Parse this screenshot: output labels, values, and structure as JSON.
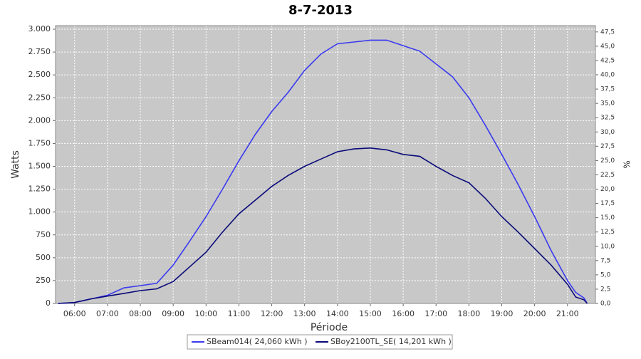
{
  "chart_data": {
    "type": "line",
    "title": "8-7-2013",
    "x_label": "Période",
    "y_label": "Watts",
    "y2_label": "%",
    "x": [
      5.5,
      6,
      6.5,
      7,
      7.5,
      8,
      8.5,
      9,
      9.5,
      10,
      10.5,
      11,
      11.5,
      12,
      12.5,
      13,
      13.5,
      14,
      14.5,
      15,
      15.5,
      16,
      16.5,
      17,
      17.5,
      18,
      18.5,
      19,
      19.5,
      20,
      20.5,
      21,
      21.25,
      21.5,
      21.6
    ],
    "series": [
      {
        "name": "SBeam014( 24,060 kWh )",
        "color": "#3a3af0",
        "values": [
          0,
          10,
          50,
          90,
          170,
          195,
          220,
          420,
          680,
          950,
          1250,
          1560,
          1850,
          2100,
          2310,
          2550,
          2730,
          2840,
          2860,
          2880,
          2880,
          2820,
          2760,
          2620,
          2480,
          2250,
          1950,
          1630,
          1300,
          950,
          580,
          250,
          120,
          60,
          0
        ]
      },
      {
        "name": "SBoy2100TL_SE( 14,201 kWh )",
        "color": "#0a0a7a",
        "values": [
          0,
          10,
          50,
          80,
          110,
          140,
          160,
          240,
          400,
          560,
          780,
          980,
          1130,
          1280,
          1400,
          1500,
          1580,
          1660,
          1690,
          1700,
          1680,
          1630,
          1610,
          1500,
          1400,
          1320,
          1150,
          950,
          780,
          600,
          420,
          210,
          70,
          40,
          0
        ]
      }
    ],
    "xlim": [
      5.42,
      21.85
    ],
    "xticks": [
      {
        "value": 6,
        "label": "06:00"
      },
      {
        "value": 7,
        "label": "07:00"
      },
      {
        "value": 8,
        "label": "08:00"
      },
      {
        "value": 9,
        "label": "09:00"
      },
      {
        "value": 10,
        "label": "10:00"
      },
      {
        "value": 11,
        "label": "11:00"
      },
      {
        "value": 12,
        "label": "12:00"
      },
      {
        "value": 13,
        "label": "13:00"
      },
      {
        "value": 14,
        "label": "14:00"
      },
      {
        "value": 15,
        "label": "15:00"
      },
      {
        "value": 16,
        "label": "16:00"
      },
      {
        "value": 17,
        "label": "17:00"
      },
      {
        "value": 18,
        "label": "18:00"
      },
      {
        "value": 19,
        "label": "19:00"
      },
      {
        "value": 20,
        "label": "20:00"
      },
      {
        "value": 21,
        "label": "21:00"
      }
    ],
    "ylim": [
      0,
      3039
    ],
    "yticks": [
      0,
      250,
      500,
      750,
      {
        "value": 1000,
        "label": "1.000"
      },
      {
        "value": 1250,
        "label": "1.250"
      },
      {
        "value": 1500,
        "label": "1.500"
      },
      {
        "value": 1750,
        "label": "1.750"
      },
      {
        "value": 2000,
        "label": "2.000"
      },
      {
        "value": 2250,
        "label": "2.250"
      },
      {
        "value": 2500,
        "label": "2.500"
      },
      {
        "value": 2750,
        "label": "2.750"
      },
      {
        "value": 3000,
        "label": "3.000"
      }
    ],
    "y2lim": [
      0,
      48.6
    ],
    "y2ticks": [
      {
        "value": 0,
        "label": "0,0"
      },
      {
        "value": 2.5,
        "label": "2,5"
      },
      {
        "value": 5,
        "label": "5,0"
      },
      {
        "value": 7.5,
        "label": "7,5"
      },
      {
        "value": 10,
        "label": "10,0"
      },
      {
        "value": 12.5,
        "label": "12,5"
      },
      {
        "value": 15,
        "label": "15,0"
      },
      {
        "value": 17.5,
        "label": "17,5"
      },
      {
        "value": 20,
        "label": "20,0"
      },
      {
        "value": 22.5,
        "label": "22,5"
      },
      {
        "value": 25,
        "label": "25,0"
      },
      {
        "value": 27.5,
        "label": "27,5"
      },
      {
        "value": 30,
        "label": "30,0"
      },
      {
        "value": 32.5,
        "label": "32,5"
      },
      {
        "value": 35,
        "label": "35,0"
      },
      {
        "value": 37.5,
        "label": "37,5"
      },
      {
        "value": 40,
        "label": "40,0"
      },
      {
        "value": 42.5,
        "label": "42,5"
      },
      {
        "value": 45,
        "label": "45,0"
      },
      {
        "value": 47.5,
        "label": "47,5"
      }
    ],
    "grid": true,
    "legend": "bottom"
  }
}
